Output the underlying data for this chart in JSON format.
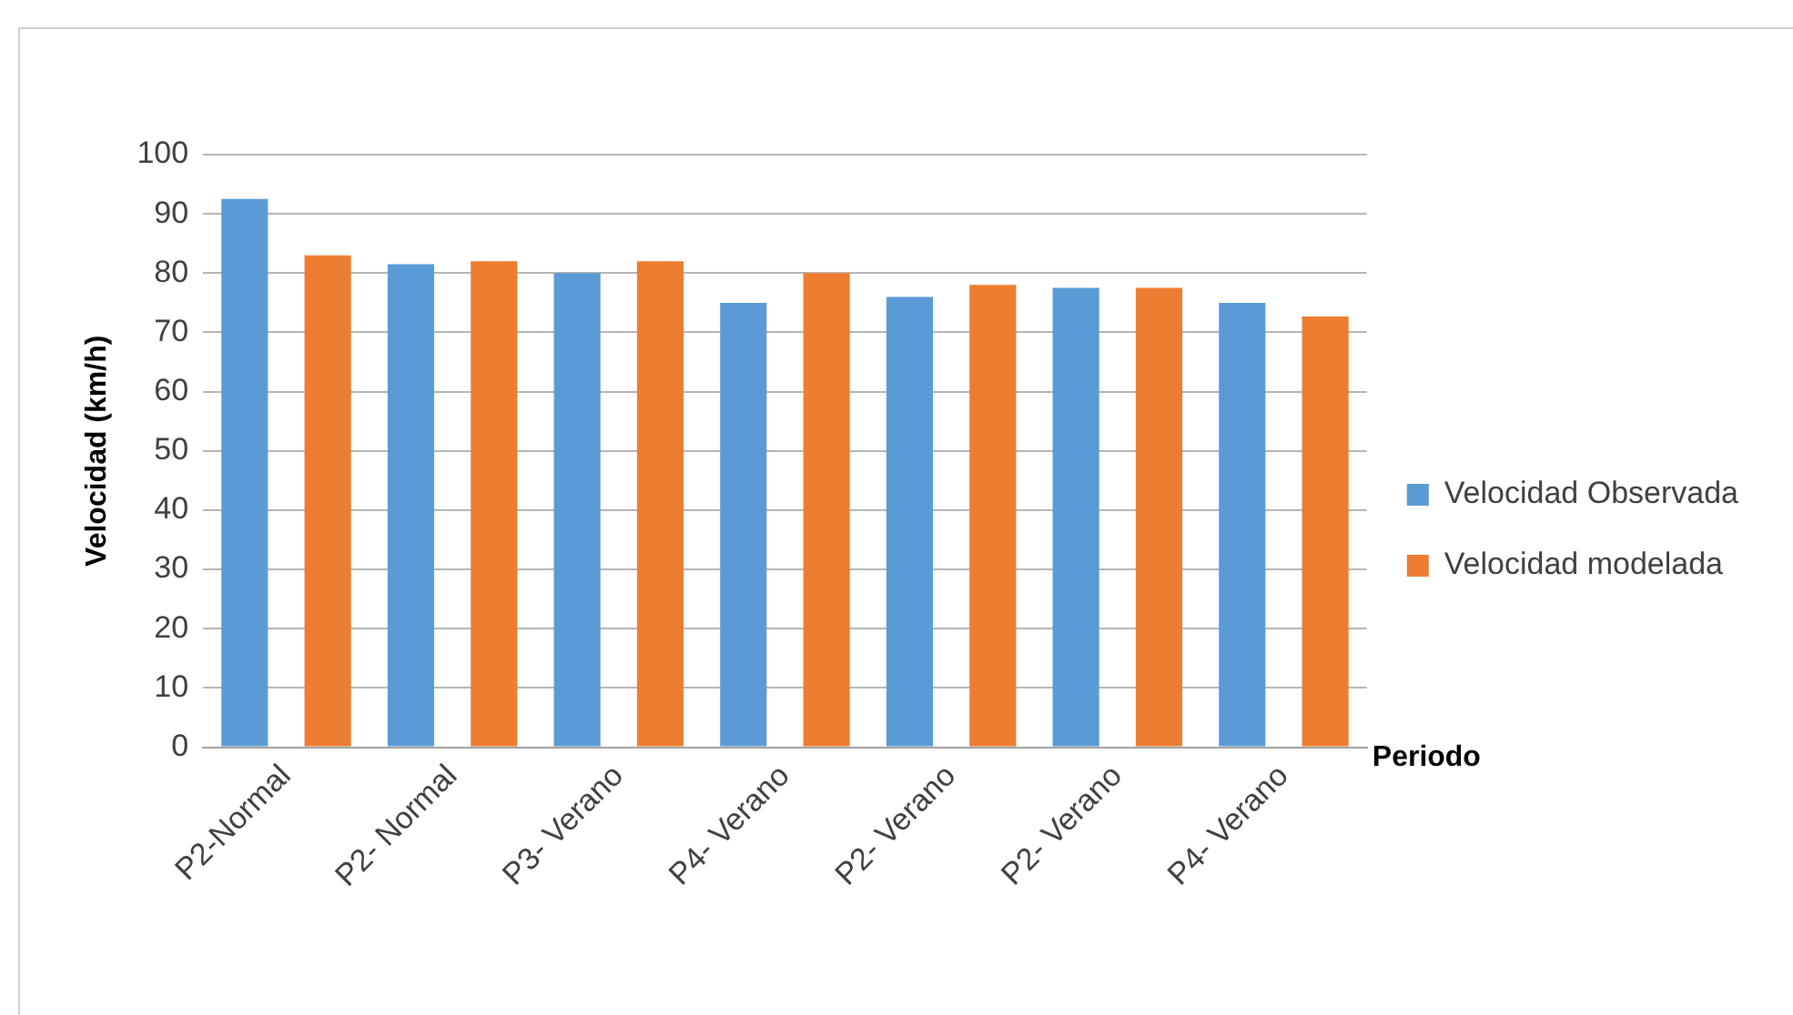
{
  "chart_data": {
    "type": "bar",
    "xlabel": "Periodo",
    "ylabel": "Velocidad (km/h)",
    "categories": [
      "P2-Normal",
      "P2- Normal",
      "P3- Verano",
      "P4- Verano",
      "P2- Verano",
      "P2- Verano",
      "P4- Verano"
    ],
    "series": [
      {
        "name": "Velocidad Observada",
        "color": "#5b9bd5",
        "values": [
          92.5,
          81.5,
          80,
          75,
          76,
          77.5,
          75
        ]
      },
      {
        "name": "Velocidad modelada",
        "color": "#ed7d31",
        "values": [
          83,
          82,
          82,
          80,
          78,
          77.5,
          72.7
        ]
      }
    ],
    "ylim": [
      0,
      100
    ],
    "yticks": [
      0,
      10,
      20,
      30,
      40,
      50,
      60,
      70,
      80,
      90,
      100
    ],
    "grid": "y",
    "legend": "right"
  }
}
